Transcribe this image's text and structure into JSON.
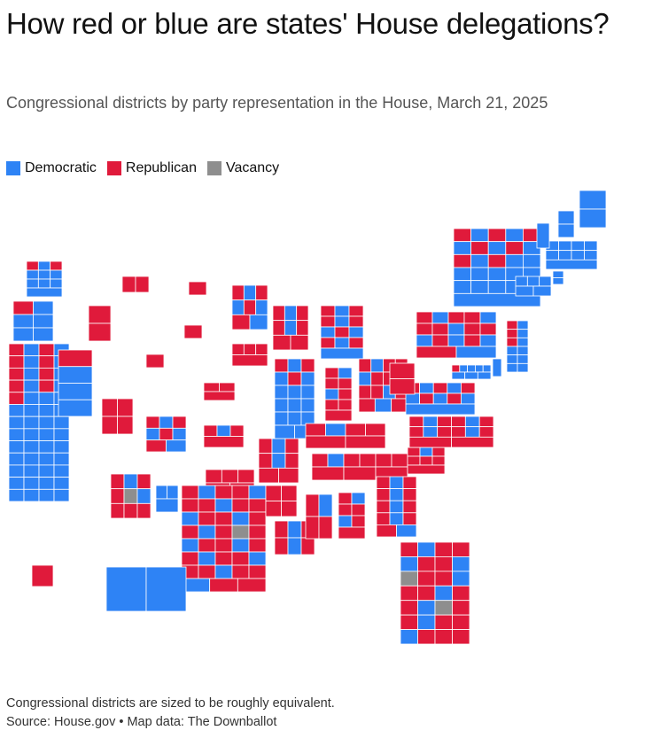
{
  "title": "How red or blue are states' House delegations?",
  "subtitle": "Congressional districts by party representation in the House, March 21, 2025",
  "legend": [
    {
      "label": "Democratic",
      "color": "#2e83f5"
    },
    {
      "label": "Republican",
      "color": "#e01a3b"
    },
    {
      "label": "Vacancy",
      "color": "#8e8e8e"
    }
  ],
  "note": "Congressional districts are sized to be roughly equivalent.",
  "source": "Source: House.gov • Map data: The Downballot",
  "states": {
    "WA": [
      8,
      2,
      0
    ],
    "OR": [
      5,
      1,
      0
    ],
    "CA": [
      43,
      9,
      0
    ],
    "NV": [
      3,
      1,
      0
    ],
    "ID": [
      0,
      2,
      0
    ],
    "MT": [
      0,
      2,
      0
    ],
    "WY": [
      0,
      1,
      0
    ],
    "UT": [
      0,
      4,
      0
    ],
    "CO": [
      4,
      4,
      0
    ],
    "AZ": [
      2,
      6,
      1
    ],
    "NM": [
      3,
      0,
      0
    ],
    "ND": [
      0,
      1,
      0
    ],
    "SD": [
      0,
      1,
      0
    ],
    "NE": [
      0,
      3,
      0
    ],
    "KS": [
      1,
      3,
      0
    ],
    "OK": [
      0,
      5,
      0
    ],
    "TX": [
      12,
      25,
      1
    ],
    "MN": [
      4,
      4,
      0
    ],
    "IA": [
      0,
      4,
      0
    ],
    "MO": [
      2,
      6,
      0
    ],
    "AR": [
      0,
      4,
      0
    ],
    "LA": [
      2,
      4,
      0
    ],
    "WI": [
      2,
      6,
      0
    ],
    "IL": [
      14,
      3,
      0
    ],
    "MI": [
      6,
      7,
      0
    ],
    "IN": [
      2,
      7,
      0
    ],
    "OH": [
      5,
      10,
      0
    ],
    "KY": [
      1,
      5,
      0
    ],
    "TN": [
      1,
      8,
      0
    ],
    "MS": [
      1,
      3,
      0
    ],
    "AL": [
      2,
      5,
      0
    ],
    "GA": [
      5,
      9,
      0
    ],
    "FL": [
      8,
      18,
      2
    ],
    "SC": [
      1,
      6,
      0
    ],
    "NC": [
      4,
      10,
      0
    ],
    "VA": [
      6,
      5,
      0
    ],
    "WV": [
      0,
      2,
      0
    ],
    "PA": [
      7,
      10,
      0
    ],
    "NY": [
      19,
      7,
      0
    ],
    "NJ": [
      9,
      3,
      0
    ],
    "DE": [
      1,
      0,
      0
    ],
    "MD": [
      7,
      1,
      0
    ],
    "CT": [
      5,
      0,
      0
    ],
    "RI": [
      2,
      0,
      0
    ],
    "MA": [
      9,
      0,
      0
    ],
    "VT": [
      1,
      0,
      0
    ],
    "NH": [
      2,
      0,
      0
    ],
    "ME": [
      2,
      0,
      0
    ],
    "AK": [
      0,
      1,
      0
    ],
    "HI": [
      2,
      0,
      0
    ]
  }
}
